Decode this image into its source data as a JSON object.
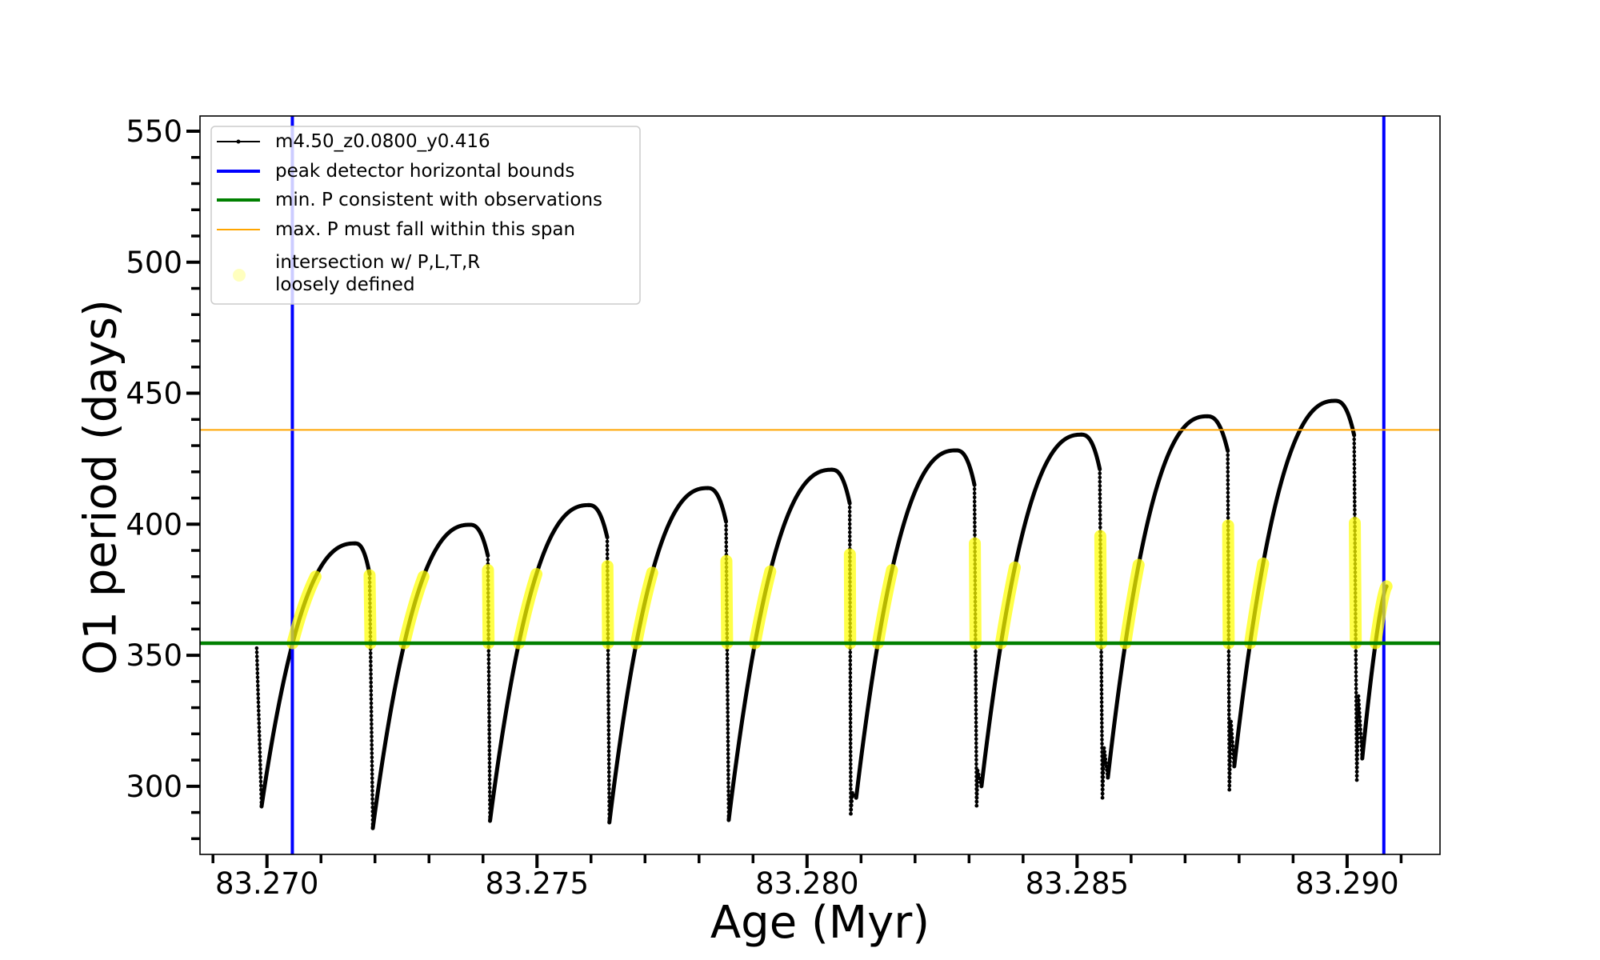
{
  "chart_data": {
    "type": "line",
    "title": "",
    "xlabel": "Age (Myr)",
    "ylabel": "O1 period (days)",
    "xlim": [
      83.26876,
      83.29172
    ],
    "ylim": [
      274.0,
      555.8
    ],
    "grid": false,
    "legend_position": "top-left",
    "x_ticks": {
      "values": [
        83.27,
        83.275,
        83.28,
        83.285,
        83.29
      ],
      "labels": [
        "83.270",
        "83.275",
        "83.280",
        "83.285",
        "83.290"
      ],
      "minor_step": 0.001
    },
    "y_ticks": {
      "values": [
        300,
        350,
        400,
        450,
        500,
        550
      ],
      "labels": [
        "300",
        "350",
        "400",
        "450",
        "500",
        "550"
      ],
      "minor_step": 10
    },
    "colors": {
      "curve": "#000000",
      "bounds": "#0000ff",
      "min_p": "#008000",
      "max_p": "#ffa500",
      "intersection": "#ffff00"
    },
    "legend": [
      {
        "label": "m4.50_z0.0800_y0.416",
        "color_key": "curve"
      },
      {
        "label": "peak detector horizontal bounds",
        "color_key": "bounds"
      },
      {
        "label": "min. P consistent with observations",
        "color_key": "min_p"
      },
      {
        "label": "max. P must fall within this span",
        "color_key": "max_p"
      },
      {
        "label_lines": [
          "intersection w/ P,L,T,R",
          "loosely defined"
        ],
        "color_key": "intersection"
      }
    ],
    "peak_detector_bounds_age": [
      83.27047,
      83.29068
    ],
    "min_period": 354.6,
    "max_period": 436.0,
    "track": {
      "start": [
        83.26981,
        352.7
      ],
      "cycles": [
        {
          "min": [
            83.2699,
            292.3
          ],
          "peak": [
            83.27163,
            392.7
          ],
          "drop": [
            83.2719,
            381
          ],
          "rise_yellow_top": 380,
          "fall_yellow_top": 380.5
        },
        {
          "min": [
            83.27196,
            284.0
          ],
          "peak": [
            83.27376,
            399.8
          ],
          "drop": [
            83.27409,
            388
          ],
          "rise_yellow_top": 380,
          "fall_yellow_top": 382.5
        },
        {
          "min": [
            83.27413,
            286.8
          ],
          "peak": [
            83.27596,
            407.3
          ],
          "drop": [
            83.2763,
            395
          ],
          "rise_yellow_top": 381,
          "fall_yellow_top": 384
        },
        {
          "min": [
            83.27634,
            286.2
          ],
          "peak": [
            83.27816,
            413.8
          ],
          "drop": [
            83.2785,
            401
          ],
          "rise_yellow_top": 381.5,
          "fall_yellow_top": 386
        },
        {
          "min": [
            83.27855,
            287.1
          ],
          "peak": [
            83.28046,
            420.8
          ],
          "drop": [
            83.28079,
            408
          ],
          "rise_yellow_top": 382,
          "fall_yellow_top": 388.5
        },
        {
          "min": [
            83.28081,
            289.5
          ],
          "bump": [
            83.28084,
            297.5
          ],
          "dip": [
            83.28091,
            295.6
          ],
          "peak": [
            83.28276,
            428.2
          ],
          "drop": [
            83.2831,
            415
          ],
          "rise_yellow_top": 382.5,
          "fall_yellow_top": 392.7
        },
        {
          "min": [
            83.28314,
            292.6
          ],
          "bump": [
            83.28316,
            306.0
          ],
          "dip": [
            83.28323,
            300.0
          ],
          "peak": [
            83.28508,
            434.2
          ],
          "drop": [
            83.28542,
            421
          ],
          "rise_yellow_top": 383.5,
          "fall_yellow_top": 395.5
        },
        {
          "min": [
            83.28547,
            295.6
          ],
          "bump": [
            83.2855,
            314.6
          ],
          "dip": [
            83.28557,
            303.3
          ],
          "peak": [
            83.28741,
            441.2
          ],
          "drop": [
            83.28779,
            428
          ],
          "rise_yellow_top": 384.5,
          "fall_yellow_top": 399.5
        },
        {
          "min": [
            83.28782,
            298.7
          ],
          "bump": [
            83.28785,
            324.7
          ],
          "dip": [
            83.28791,
            307.6
          ],
          "peak": [
            83.28978,
            447.1
          ],
          "drop": [
            83.29013,
            434
          ],
          "rise_yellow_top": 385,
          "fall_yellow_top": 400.5
        },
        {
          "min": [
            83.29018,
            302.4
          ],
          "bump": [
            83.29021,
            334.4
          ],
          "dip": [
            83.29028,
            310.6
          ],
          "end": [
            83.29073,
            376.3
          ],
          "rise_yellow_top": 377
        }
      ]
    }
  }
}
